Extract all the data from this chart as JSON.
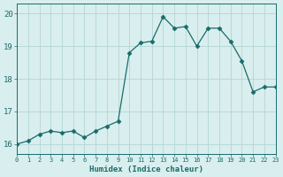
{
  "x": [
    0,
    1,
    2,
    3,
    4,
    5,
    6,
    7,
    8,
    9,
    10,
    11,
    12,
    13,
    14,
    15,
    16,
    17,
    18,
    19,
    20,
    21,
    22,
    23
  ],
  "y": [
    16.0,
    16.1,
    16.3,
    16.4,
    16.35,
    16.4,
    16.2,
    16.4,
    16.55,
    16.7,
    18.8,
    19.1,
    19.15,
    19.9,
    19.55,
    19.6,
    19.0,
    19.55,
    19.55,
    19.15,
    18.55,
    17.6,
    17.75,
    17.75
  ],
  "xlabel": "Humidex (Indice chaleur)",
  "xlim": [
    0,
    23
  ],
  "ylim": [
    15.7,
    20.3
  ],
  "yticks": [
    16,
    17,
    18,
    19,
    20
  ],
  "xticks": [
    0,
    1,
    2,
    3,
    4,
    5,
    6,
    7,
    8,
    9,
    10,
    11,
    12,
    13,
    14,
    15,
    16,
    17,
    18,
    19,
    20,
    21,
    22,
    23
  ],
  "line_color": "#1a6b6b",
  "marker": "D",
  "marker_size": 2.5,
  "bg_color": "#d9eeee",
  "grid_color": "#b5d5d5",
  "tick_label_color": "#1a6b6b",
  "axis_label_color": "#1a6b6b",
  "font_family": "monospace"
}
